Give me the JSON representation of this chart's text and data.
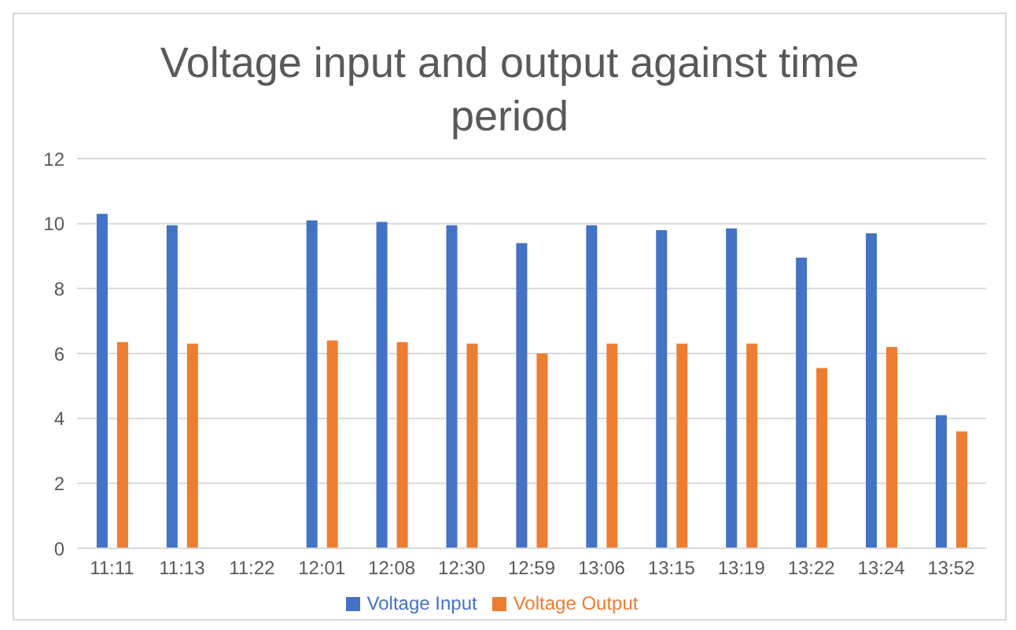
{
  "chart_data": {
    "type": "bar",
    "title": "Voltage input and output against time period",
    "categories": [
      "11:11",
      "11:13",
      "11:22",
      "12:01",
      "12:08",
      "12:30",
      "12:59",
      "13:06",
      "13:15",
      "13:19",
      "13:22",
      "13:24",
      "13:52"
    ],
    "series": [
      {
        "name": "Voltage Input",
        "color": "#4472c4",
        "values": [
          10.3,
          9.95,
          null,
          10.1,
          10.05,
          9.95,
          9.4,
          9.95,
          9.8,
          9.85,
          8.95,
          9.7,
          4.1
        ]
      },
      {
        "name": "Voltage Output",
        "color": "#ed7d31",
        "values": [
          6.35,
          6.3,
          null,
          6.4,
          6.35,
          6.3,
          6.0,
          6.3,
          6.3,
          6.3,
          5.55,
          6.2,
          3.6
        ]
      }
    ],
    "ylim": [
      0,
      12
    ],
    "yticks": [
      0,
      2,
      4,
      6,
      8,
      10,
      12
    ],
    "grid": "y",
    "legend": "bottom"
  }
}
